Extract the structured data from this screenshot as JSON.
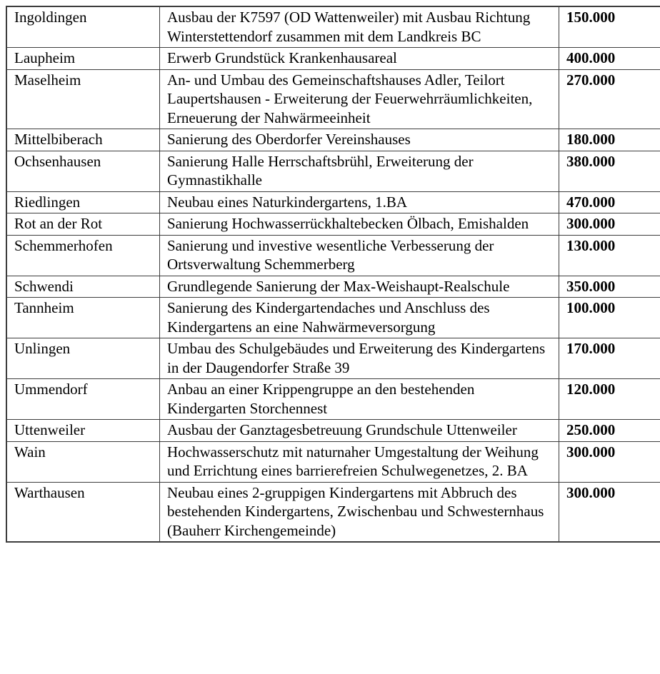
{
  "document": {
    "background_color": "#ffffff",
    "border_color": "#3d3d3d",
    "text_color": "#000000"
  },
  "table": {
    "columns": [
      {
        "key": "municipality",
        "label": ""
      },
      {
        "key": "project",
        "label": ""
      },
      {
        "key": "amount",
        "label": ""
      }
    ],
    "rows": [
      {
        "municipality": "Ingoldingen",
        "project": "Ausbau der K7597 (OD Wattenweiler) mit Ausbau Richtung Winterstettendorf zusammen mit dem Landkreis BC",
        "amount": "150.000"
      },
      {
        "municipality": "Laupheim",
        "project": "Erwerb Grundstück Krankenhausareal",
        "amount": "400.000"
      },
      {
        "municipality": "Maselheim",
        "project": "An- und Umbau des Gemeinschaftshauses Adler, Teilort Laupertshausen - Erweiterung der Feuerwehrräumlichkeiten, Erneuerung der Nahwärmeeinheit",
        "amount": "270.000"
      },
      {
        "municipality": "Mittelbiberach",
        "project": "Sanierung des Oberdorfer Vereinshauses",
        "amount": "180.000"
      },
      {
        "municipality": "Ochsenhausen",
        "project": "Sanierung Halle Herrschaftsbrühl, Erweiterung der Gymnastikhalle",
        "amount": "380.000"
      },
      {
        "municipality": "Riedlingen",
        "project": "Neubau eines Naturkindergartens, 1.BA",
        "amount": "470.000"
      },
      {
        "municipality": "Rot an der Rot",
        "project": "Sanierung Hochwasserrückhaltebecken Ölbach, Emishalden",
        "amount": "300.000"
      },
      {
        "municipality": "Schemmerhofen",
        "project": "Sanierung und investive wesentliche Verbesserung der Ortsverwaltung Schemmerberg",
        "amount": "130.000"
      },
      {
        "municipality": "Schwendi",
        "project": "Grundlegende Sanierung der Max-Weishaupt-Realschule",
        "amount": "350.000"
      },
      {
        "municipality": "Tannheim",
        "project": "Sanierung des Kindergartendaches und Anschluss des Kindergartens an eine Nahwärmeversorgung",
        "amount": "100.000"
      },
      {
        "municipality": "Unlingen",
        "project": "Umbau des Schulgebäudes und Erweiterung des Kindergartens in der Daugendorfer Straße 39",
        "amount": "170.000"
      },
      {
        "municipality": "Ummendorf",
        "project": "Anbau an einer Krippengruppe an den bestehenden Kindergarten Storchennest",
        "amount": "120.000"
      },
      {
        "municipality": "Uttenweiler",
        "project": "Ausbau der Ganztagesbetreuung Grundschule Uttenweiler",
        "amount": "250.000"
      },
      {
        "municipality": "Wain",
        "project": "Hochwasserschutz mit naturnaher Umgestaltung der Weihung und Errichtung eines barrierefreien Schulwegenetzes, 2. BA",
        "amount": "300.000"
      },
      {
        "municipality": "Warthausen",
        "project": "Neubau eines 2-gruppigen Kindergartens mit Abbruch des bestehenden Kindergartens, Zwischenbau und Schwesternhaus (Bauherr Kirchengemeinde)",
        "amount": "300.000"
      }
    ]
  }
}
